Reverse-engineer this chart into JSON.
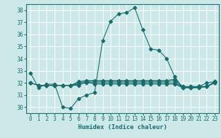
{
  "title": "",
  "xlabel": "Humidex (Indice chaleur)",
  "ylabel": "",
  "bg_color": "#cce8e8",
  "grid_color": "#ffffff",
  "line_color": "#1a6b6b",
  "xlim": [
    -0.5,
    23.5
  ],
  "ylim": [
    29.5,
    38.5
  ],
  "yticks": [
    30,
    31,
    32,
    33,
    34,
    35,
    36,
    37,
    38
  ],
  "xticks": [
    0,
    1,
    2,
    3,
    4,
    5,
    6,
    7,
    8,
    9,
    10,
    11,
    12,
    13,
    14,
    15,
    16,
    17,
    18,
    19,
    20,
    21,
    22,
    23
  ],
  "series": [
    [
      32.8,
      31.6,
      31.9,
      31.9,
      30.0,
      29.9,
      30.7,
      31.0,
      31.2,
      35.5,
      37.1,
      37.7,
      37.8,
      38.2,
      36.4,
      34.8,
      34.7,
      34.0,
      32.5,
      31.6,
      31.6,
      31.7,
      32.0,
      32.1
    ],
    [
      32.0,
      31.8,
      31.8,
      31.8,
      31.8,
      31.8,
      31.8,
      32.1,
      31.9,
      31.9,
      31.9,
      31.9,
      31.9,
      31.9,
      31.9,
      31.9,
      31.9,
      31.9,
      31.9,
      31.6,
      31.6,
      31.6,
      31.7,
      32.0
    ],
    [
      32.0,
      31.8,
      31.8,
      31.8,
      31.8,
      31.8,
      31.9,
      32.0,
      32.0,
      32.0,
      32.0,
      32.0,
      32.0,
      32.0,
      32.0,
      32.0,
      32.0,
      32.0,
      32.0,
      31.6,
      31.6,
      31.6,
      31.7,
      32.0
    ],
    [
      32.0,
      31.8,
      31.8,
      31.8,
      31.8,
      31.8,
      32.0,
      32.1,
      32.1,
      32.1,
      32.1,
      32.1,
      32.1,
      32.1,
      32.1,
      32.1,
      32.1,
      32.1,
      32.2,
      31.6,
      31.6,
      31.7,
      31.7,
      32.1
    ],
    [
      32.0,
      31.8,
      31.8,
      31.8,
      31.8,
      31.8,
      32.1,
      32.2,
      32.2,
      32.2,
      32.2,
      32.2,
      32.2,
      32.2,
      32.2,
      32.2,
      32.2,
      32.2,
      32.3,
      31.7,
      31.7,
      31.7,
      31.7,
      32.1
    ]
  ],
  "marker": "D",
  "markersize": 2.5,
  "linewidth": 0.8,
  "tick_fontsize": 5.5,
  "xlabel_fontsize": 6.5
}
